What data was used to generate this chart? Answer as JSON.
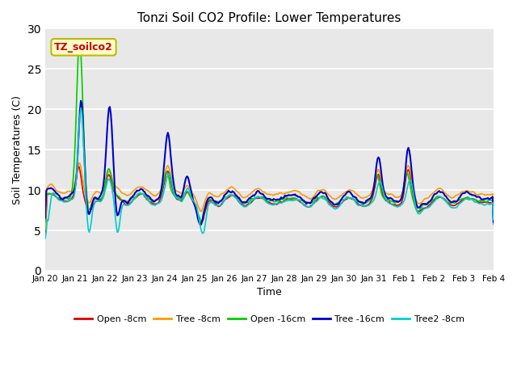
{
  "title": "Tonzi Soil CO2 Profile: Lower Temperatures",
  "xlabel": "Time",
  "ylabel": "Soil Temperatures (C)",
  "ylim": [
    0,
    30
  ],
  "yticks": [
    0,
    5,
    10,
    15,
    20,
    25,
    30
  ],
  "annotation_text": "TZ_soilco2",
  "annotation_color": "#cc0000",
  "annotation_bg": "#ffffcc",
  "annotation_border": "#bbbb00",
  "series": {
    "Open -8cm": {
      "color": "#dd0000",
      "lw": 1.2
    },
    "Tree -8cm": {
      "color": "#ff9900",
      "lw": 1.2
    },
    "Open -16cm": {
      "color": "#00cc00",
      "lw": 1.2
    },
    "Tree -16cm": {
      "color": "#0000cc",
      "lw": 1.5
    },
    "Tree2 -8cm": {
      "color": "#00cccc",
      "lw": 1.2
    }
  },
  "xtick_labels": [
    "Jan 20",
    "Jan 21",
    "Jan 22",
    "Jan 23",
    "Jan 24",
    "Jan 25",
    "Jan 26",
    "Jan 27",
    "Jan 28",
    "Jan 29",
    "Jan 30",
    "Jan 31",
    "Feb 1",
    "Feb 2",
    "Feb 3",
    "Feb 4"
  ],
  "n_points": 480
}
